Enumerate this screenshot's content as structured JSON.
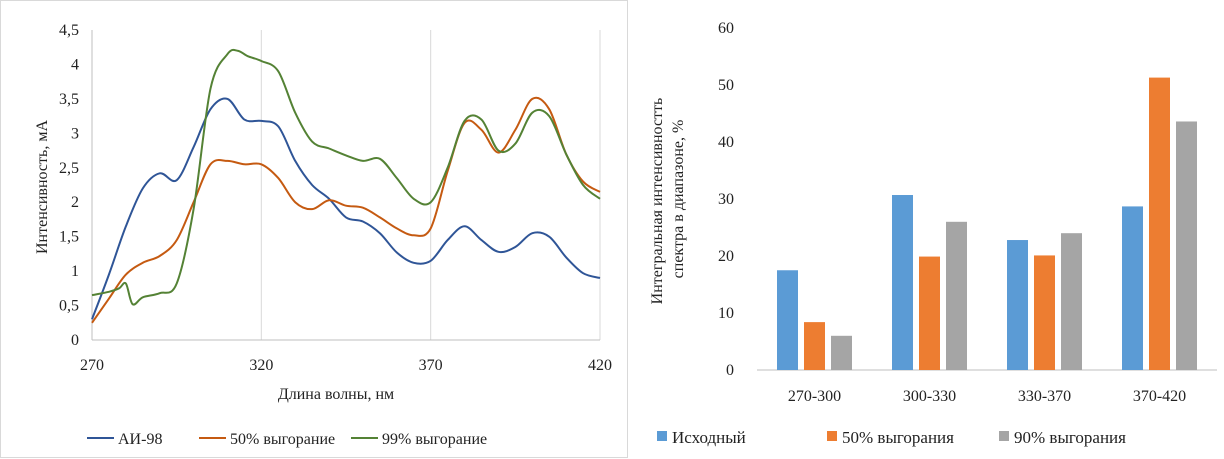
{
  "chart_data": [
    {
      "type": "line",
      "title": "",
      "xlabel": "Длина волны, нм",
      "ylabel": "Интенсивность, мА",
      "xlim": [
        270,
        420
      ],
      "ylim": [
        0,
        4.5
      ],
      "xticks": [
        270,
        320,
        370,
        420
      ],
      "xtick_labels": [
        "270",
        "320",
        "370",
        "420"
      ],
      "yticks": [
        0,
        0.5,
        1,
        1.5,
        2,
        2.5,
        3,
        3.5,
        4,
        4.5
      ],
      "ytick_labels": [
        "0",
        "0,5",
        "1",
        "1,5",
        "2",
        "2,5",
        "3",
        "3,5",
        "4",
        "4,5"
      ],
      "grid": "vertical",
      "legend": "bottom",
      "series": [
        {
          "name": "АИ-98",
          "color": "#2f5597",
          "x": [
            270,
            275,
            280,
            285,
            290,
            295,
            300,
            305,
            310,
            315,
            320,
            325,
            330,
            335,
            340,
            345,
            350,
            355,
            360,
            365,
            370,
            375,
            380,
            385,
            390,
            395,
            400,
            405,
            410,
            415,
            420
          ],
          "y": [
            0.3,
            0.95,
            1.65,
            2.2,
            2.42,
            2.32,
            2.8,
            3.35,
            3.5,
            3.2,
            3.18,
            3.1,
            2.6,
            2.25,
            2.05,
            1.78,
            1.72,
            1.55,
            1.27,
            1.12,
            1.15,
            1.45,
            1.65,
            1.45,
            1.28,
            1.35,
            1.55,
            1.5,
            1.2,
            0.97,
            0.9
          ]
        },
        {
          "name": "50% выгорание",
          "color": "#c55a11",
          "x": [
            270,
            275,
            280,
            285,
            290,
            295,
            300,
            305,
            310,
            315,
            320,
            325,
            330,
            335,
            340,
            345,
            350,
            355,
            360,
            365,
            370,
            375,
            380,
            385,
            390,
            395,
            400,
            405,
            410,
            415,
            420
          ],
          "y": [
            0.25,
            0.6,
            0.95,
            1.12,
            1.22,
            1.45,
            2.0,
            2.55,
            2.6,
            2.55,
            2.55,
            2.35,
            2.0,
            1.9,
            2.03,
            1.95,
            1.92,
            1.78,
            1.62,
            1.52,
            1.62,
            2.45,
            3.15,
            3.05,
            2.72,
            3.05,
            3.5,
            3.35,
            2.7,
            2.3,
            2.15
          ]
        },
        {
          "name": "99% выгорание",
          "color": "#548235",
          "x": [
            270,
            275,
            278,
            280,
            282,
            285,
            290,
            295,
            300,
            305,
            310,
            313,
            316,
            320,
            325,
            330,
            335,
            340,
            345,
            350,
            355,
            360,
            365,
            370,
            375,
            380,
            385,
            390,
            395,
            400,
            405,
            410,
            415,
            420
          ],
          "y": [
            0.65,
            0.7,
            0.75,
            0.82,
            0.52,
            0.62,
            0.68,
            0.82,
            1.9,
            3.65,
            4.15,
            4.2,
            4.12,
            4.05,
            3.9,
            3.3,
            2.88,
            2.78,
            2.68,
            2.6,
            2.63,
            2.35,
            2.05,
            2.0,
            2.5,
            3.18,
            3.2,
            2.75,
            2.85,
            3.3,
            3.25,
            2.7,
            2.25,
            2.05
          ]
        }
      ]
    },
    {
      "type": "bar",
      "title": "",
      "xlabel": "",
      "ylabel": "Интегральная  интенсивность спектра в диапазоне, %",
      "ylabel_lines": [
        "Интегральная  интенсивностть",
        "спектра в диапазоне, %"
      ],
      "categories": [
        "270-300",
        "300-330",
        "330-370",
        "370-420"
      ],
      "ylim": [
        0,
        60
      ],
      "yticks": [
        0,
        10,
        20,
        30,
        40,
        50,
        60
      ],
      "ytick_labels": [
        "0",
        "10",
        "20",
        "30",
        "40",
        "50",
        "60"
      ],
      "grid": "none",
      "legend": "bottom",
      "series": [
        {
          "name": "Исходный",
          "color": "#5b9bd5",
          "values": [
            17.5,
            30.7,
            22.8,
            28.7
          ]
        },
        {
          "name": "50% выгорания",
          "color": "#ed7d31",
          "values": [
            8.4,
            19.9,
            20.1,
            51.3
          ]
        },
        {
          "name": "90% выгорания",
          "color": "#a5a5a5",
          "values": [
            6.0,
            26.0,
            24.0,
            43.6
          ]
        }
      ]
    }
  ]
}
